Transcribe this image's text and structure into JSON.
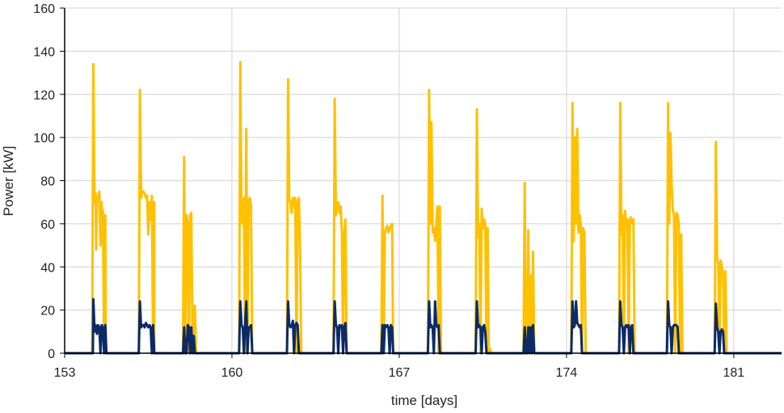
{
  "chart_data": {
    "type": "line",
    "title": "",
    "xlabel": "time [days]",
    "ylabel": "Power [kW]",
    "xlim": [
      153,
      183
    ],
    "ylim": [
      0,
      160
    ],
    "x_ticks": [
      153,
      160,
      167,
      174,
      181
    ],
    "x_tick_labels": [
      "153",
      "160",
      "167",
      "174",
      "181"
    ],
    "y_ticks": [
      0,
      20,
      40,
      60,
      80,
      100,
      120,
      140,
      160
    ],
    "y_tick_labels": [
      "0",
      "20",
      "40",
      "60",
      "80",
      "100",
      "120",
      "140",
      "160"
    ],
    "grid": true,
    "legend": "none",
    "colors": {
      "series_1": "#FFC000",
      "series_2": "#0B2A66",
      "grid": "#D9D9D9",
      "axis": "#000000"
    },
    "series": [
      {
        "color": "#FFC000",
        "x": [
          153.0,
          154.15,
          154.2,
          154.25,
          154.3,
          154.32,
          154.35,
          154.4,
          154.45,
          154.5,
          154.55,
          154.58,
          154.6,
          154.65,
          154.7,
          154.72,
          154.75,
          154.8,
          154.8,
          154.85,
          155.0,
          156.05,
          156.1,
          156.15,
          156.2,
          156.25,
          156.3,
          156.35,
          156.4,
          156.45,
          156.5,
          156.55,
          156.6,
          156.65,
          156.7,
          156.75,
          156.75,
          156.8,
          156.85,
          157.9,
          157.95,
          158.0,
          158.05,
          158.1,
          158.15,
          158.2,
          158.25,
          158.3,
          158.35,
          158.4,
          158.45,
          158.5,
          158.55,
          158.6,
          160.3,
          160.35,
          160.4,
          160.45,
          160.5,
          160.55,
          160.6,
          160.65,
          160.7,
          160.75,
          160.8,
          160.85,
          160.88,
          160.9,
          161.0,
          162.3,
          162.35,
          162.4,
          162.45,
          162.5,
          162.55,
          162.6,
          162.65,
          162.7,
          162.75,
          162.8,
          162.85,
          162.9,
          162.95,
          163.0,
          164.25,
          164.3,
          164.35,
          164.4,
          164.45,
          164.5,
          164.55,
          164.6,
          164.65,
          164.7,
          164.75,
          164.8,
          164.85,
          164.9,
          164.95,
          165.0,
          166.25,
          166.3,
          166.35,
          166.4,
          166.45,
          166.5,
          166.55,
          166.6,
          166.65,
          166.7,
          166.75,
          166.8,
          166.85,
          168.2,
          168.25,
          168.3,
          168.35,
          168.4,
          168.45,
          168.5,
          168.55,
          168.6,
          168.65,
          168.7,
          168.75,
          168.8,
          168.85,
          168.9,
          170.2,
          170.25,
          170.3,
          170.35,
          170.4,
          170.45,
          170.5,
          170.55,
          170.6,
          170.65,
          170.7,
          170.75,
          170.8,
          170.85,
          172.2,
          172.25,
          172.3,
          172.35,
          172.4,
          172.45,
          172.5,
          172.55,
          172.6,
          172.65,
          174.2,
          174.25,
          174.3,
          174.35,
          174.4,
          174.45,
          174.5,
          174.55,
          174.6,
          174.65,
          174.7,
          174.75,
          174.8,
          174.85,
          174.9,
          174.95,
          175.0,
          176.2,
          176.25,
          176.3,
          176.35,
          176.4,
          176.45,
          176.5,
          176.55,
          176.6,
          176.65,
          176.7,
          176.75,
          176.8,
          176.85,
          176.9,
          176.95,
          177.0,
          178.2,
          178.25,
          178.3,
          178.35,
          178.4,
          178.45,
          178.5,
          178.55,
          178.6,
          178.65,
          178.7,
          178.75,
          178.8,
          178.85,
          178.9,
          178.95,
          180.2,
          180.25,
          180.3,
          180.35,
          180.4,
          180.45,
          180.5,
          180.55,
          180.6,
          180.65,
          180.7,
          183.0
        ],
        "y": [
          0,
          0,
          134,
          70,
          74,
          48,
          72,
          72,
          75,
          50,
          70,
          58,
          66,
          0,
          64,
          0,
          0,
          0,
          0,
          0,
          0,
          0,
          0,
          122,
          72,
          75,
          75,
          74,
          72,
          73,
          55,
          70,
          62,
          73,
          0,
          70,
          0,
          0,
          0,
          0,
          0,
          91,
          0,
          64,
          60,
          0,
          64,
          65,
          0,
          20,
          22,
          0,
          0,
          0,
          0,
          135,
          62,
          60,
          72,
          0,
          104,
          0,
          70,
          72,
          68,
          0,
          0,
          0,
          0,
          0,
          127,
          71,
          70,
          65,
          72,
          68,
          72,
          0,
          70,
          72,
          50,
          0,
          0,
          0,
          0,
          118,
          64,
          68,
          70,
          65,
          68,
          56,
          0,
          55,
          62,
          0,
          0,
          0,
          0,
          0,
          0,
          73,
          0,
          56,
          58,
          59,
          56,
          58,
          59,
          60,
          0,
          0,
          0,
          0,
          122,
          60,
          107,
          56,
          58,
          52,
          60,
          68,
          0,
          68,
          0,
          0,
          0,
          0,
          0,
          113,
          54,
          60,
          0,
          67,
          58,
          62,
          60,
          0,
          58,
          0,
          2,
          0,
          0,
          79,
          0,
          0,
          57,
          0,
          36,
          0,
          47,
          0,
          0,
          116,
          52,
          100,
          60,
          104,
          56,
          64,
          60,
          0,
          58,
          55,
          0,
          0,
          0,
          0,
          0,
          0,
          116,
          55,
          64,
          0,
          66,
          60,
          62,
          0,
          62,
          63,
          60,
          62,
          0,
          0,
          0,
          0,
          0,
          116,
          60,
          102,
          78,
          66,
          64,
          0,
          65,
          64,
          60,
          0,
          55,
          0,
          0,
          0,
          0,
          98,
          44,
          42,
          0,
          43,
          40,
          36,
          0,
          38,
          0,
          0
        ]
      },
      {
        "color": "#0B2A66",
        "x": [
          153.0,
          154.15,
          154.18,
          154.2,
          154.25,
          154.3,
          154.35,
          154.4,
          154.45,
          154.5,
          154.55,
          154.6,
          154.65,
          154.7,
          154.75,
          154.78,
          154.8,
          156.0,
          156.05,
          156.1,
          156.15,
          156.2,
          156.25,
          156.3,
          156.35,
          156.4,
          156.45,
          156.5,
          156.55,
          156.6,
          156.65,
          156.7,
          156.75,
          156.8,
          157.9,
          157.95,
          158.0,
          158.05,
          158.1,
          158.15,
          158.2,
          158.25,
          158.3,
          158.35,
          158.4,
          158.45,
          158.5,
          158.55,
          158.6,
          160.3,
          160.35,
          160.4,
          160.45,
          160.5,
          160.55,
          160.6,
          160.65,
          160.7,
          160.75,
          160.8,
          160.85,
          160.9,
          160.95,
          161.0,
          162.3,
          162.35,
          162.4,
          162.45,
          162.5,
          162.55,
          162.6,
          162.65,
          162.7,
          162.75,
          162.8,
          162.85,
          162.9,
          162.95,
          163.0,
          164.25,
          164.3,
          164.35,
          164.4,
          164.45,
          164.5,
          164.55,
          164.6,
          164.65,
          164.7,
          164.75,
          164.8,
          164.85,
          164.9,
          164.95,
          165.0,
          166.25,
          166.3,
          166.35,
          166.4,
          166.45,
          166.5,
          166.55,
          166.6,
          166.65,
          166.7,
          166.75,
          166.8,
          166.85,
          168.2,
          168.25,
          168.3,
          168.35,
          168.4,
          168.45,
          168.5,
          168.55,
          168.6,
          168.65,
          168.7,
          168.75,
          168.8,
          168.85,
          168.9,
          170.2,
          170.25,
          170.3,
          170.35,
          170.4,
          170.45,
          170.5,
          170.55,
          170.6,
          170.65,
          170.7,
          170.75,
          170.8,
          170.85,
          172.2,
          172.25,
          172.3,
          172.35,
          172.4,
          172.45,
          172.5,
          172.55,
          172.6,
          172.65,
          174.2,
          174.25,
          174.3,
          174.35,
          174.4,
          174.45,
          174.5,
          174.55,
          174.6,
          174.65,
          174.7,
          174.75,
          174.8,
          174.85,
          174.9,
          174.95,
          175.0,
          176.2,
          176.25,
          176.3,
          176.35,
          176.4,
          176.45,
          176.5,
          176.55,
          176.6,
          176.65,
          176.7,
          176.75,
          176.8,
          176.85,
          176.9,
          176.95,
          177.0,
          178.2,
          178.25,
          178.3,
          178.35,
          178.4,
          178.45,
          178.5,
          178.55,
          178.6,
          178.65,
          178.7,
          178.75,
          178.8,
          178.85,
          178.9,
          178.95,
          180.2,
          180.25,
          180.3,
          180.35,
          180.4,
          180.45,
          180.5,
          180.55,
          180.6,
          180.65,
          180.7,
          183.0
        ],
        "y": [
          0,
          0,
          0,
          25,
          10,
          13,
          9,
          13,
          12,
          0,
          13,
          12,
          0,
          13,
          0,
          0,
          0,
          0,
          0,
          0,
          24,
          12,
          13,
          13,
          12,
          14,
          13,
          12,
          13,
          12,
          0,
          13,
          0,
          0,
          0,
          0,
          12,
          0,
          0,
          13,
          12,
          0,
          12,
          0,
          8,
          0,
          0,
          0,
          0,
          0,
          24,
          13,
          12,
          0,
          13,
          24,
          0,
          12,
          12,
          13,
          0,
          0,
          0,
          0,
          0,
          24,
          13,
          12,
          13,
          15,
          0,
          13,
          14,
          13,
          0,
          0,
          0,
          0,
          0,
          0,
          24,
          13,
          12,
          0,
          13,
          12,
          13,
          0,
          12,
          14,
          0,
          0,
          0,
          0,
          0,
          0,
          13,
          0,
          13,
          12,
          13,
          12,
          0,
          13,
          12,
          0,
          0,
          0,
          0,
          24,
          12,
          13,
          12,
          0,
          24,
          13,
          12,
          13,
          0,
          0,
          0,
          0,
          0,
          0,
          24,
          12,
          13,
          12,
          0,
          12,
          13,
          10,
          0,
          0,
          0,
          0,
          0,
          0,
          12,
          0,
          0,
          12,
          0,
          12,
          0,
          13,
          0,
          0,
          24,
          12,
          13,
          24,
          14,
          13,
          12,
          13,
          0,
          0,
          0,
          0,
          0,
          0,
          0,
          0,
          0,
          24,
          13,
          12,
          0,
          12,
          13,
          12,
          13,
          0,
          12,
          13,
          0,
          0,
          0,
          0,
          0,
          0,
          24,
          13,
          12,
          0,
          12,
          13,
          13,
          13,
          12,
          0,
          0,
          0,
          0,
          0,
          0,
          0,
          23,
          12,
          10,
          0,
          10,
          11,
          10,
          0,
          0,
          0,
          0
        ]
      }
    ]
  }
}
